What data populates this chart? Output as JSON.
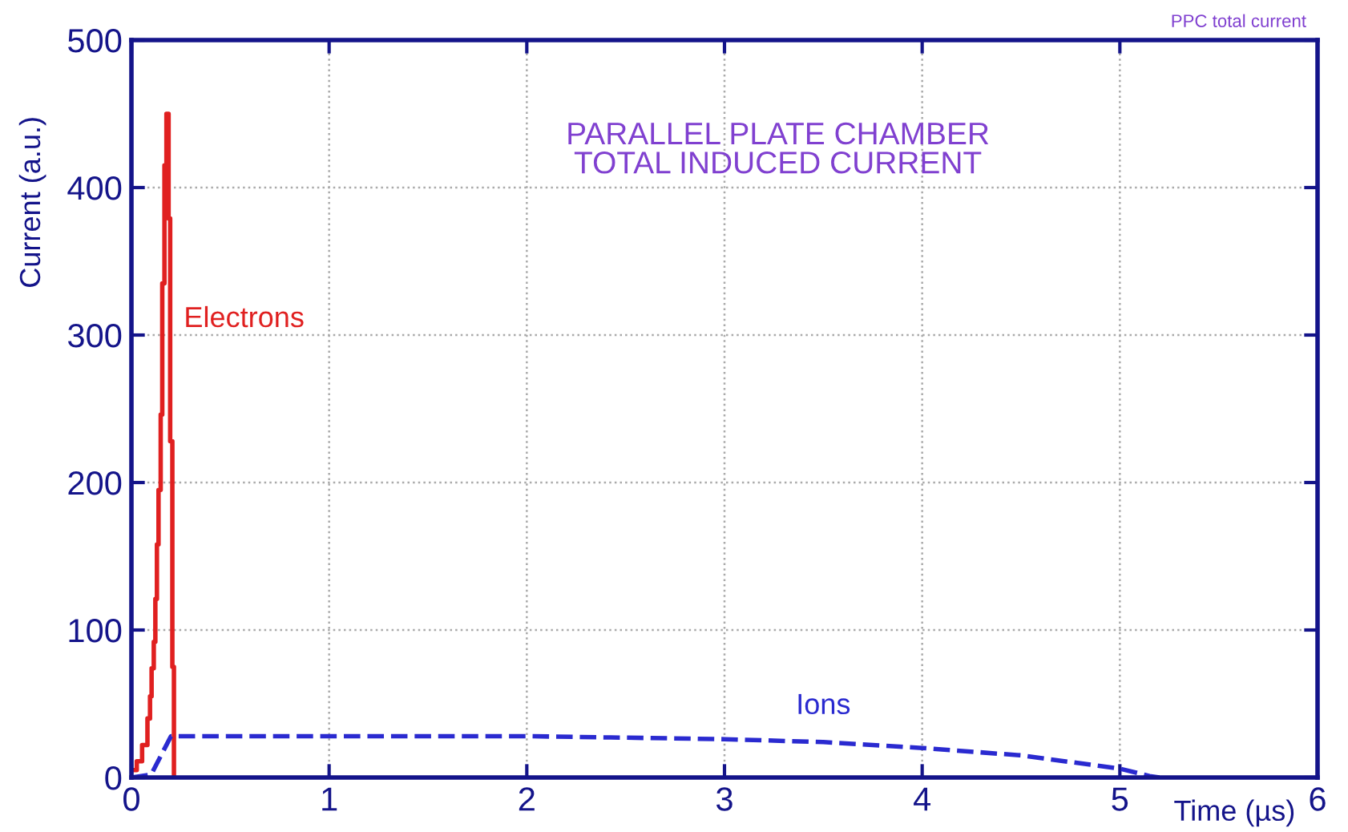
{
  "chart_data": {
    "type": "line",
    "xlabel": "Time (µs)",
    "ylabel": "Current (a.u.)",
    "xlim": [
      0,
      6
    ],
    "ylim": [
      0,
      500
    ],
    "xticks": [
      0,
      1,
      2,
      3,
      4,
      5,
      6
    ],
    "yticks": [
      0,
      100,
      200,
      300,
      400,
      500
    ],
    "grid": true,
    "annotations": [
      "PPC total current",
      "PARALLEL PLATE CHAMBER\nTOTAL INDUCED CURRENT"
    ],
    "series": [
      {
        "name": "Electrons",
        "type": "step",
        "color": "#e02020",
        "line_style": "solid",
        "x": [
          0,
          0.027,
          0.054,
          0.081,
          0.094,
          0.102,
          0.113,
          0.121,
          0.129,
          0.137,
          0.148,
          0.156,
          0.167,
          0.177,
          0.188,
          0.196,
          0.207,
          0.215
        ],
        "values": [
          5,
          11,
          22,
          40,
          55,
          74,
          92,
          121,
          158,
          195,
          246,
          335,
          415,
          450,
          379,
          228,
          75,
          0
        ]
      },
      {
        "name": "Ions",
        "color": "#2a2ad0",
        "line_style": "dashed",
        "x": [
          0,
          0.1,
          0.15,
          0.2,
          1,
          2,
          3,
          3.5,
          4,
          4.5,
          5,
          5.15,
          5.2
        ],
        "values": [
          0,
          2,
          15,
          28,
          28,
          28,
          26,
          24,
          20,
          15,
          6,
          1,
          0
        ]
      }
    ]
  }
}
